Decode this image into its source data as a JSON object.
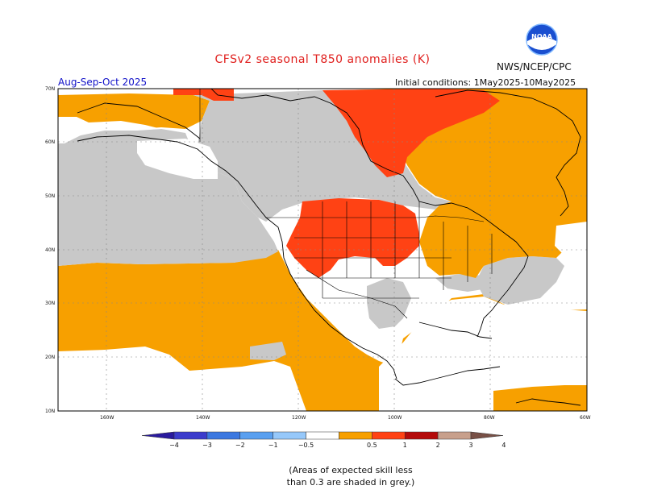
{
  "header": {
    "title": "CFSv2 seasonal T850 anomalies (K)",
    "agency": "NWS/NCEP/CPC",
    "logo_text": "NOAA",
    "season": "Aug-Sep-Oct 2025",
    "initial_conditions": "Initial conditions: 1May2025-10May2025"
  },
  "map": {
    "lat_labels": [
      "70N",
      "60N",
      "50N",
      "40N",
      "30N",
      "20N",
      "10N"
    ],
    "lon_labels": [
      "160W",
      "140W",
      "120W",
      "100W",
      "80W",
      "60W"
    ],
    "region_fills": {
      "above_0_5_to_1": "#f7a000",
      "above_1_to_2": "#ff4214",
      "low_skill": "#c8c8c8",
      "near_normal": "#ffffff"
    }
  },
  "colorbar": {
    "labels": [
      "−4",
      "−3",
      "−2",
      "−1",
      "−0.5",
      "0.5",
      "1",
      "2",
      "3",
      "4"
    ],
    "colors": [
      "#2a1a9e",
      "#3c3ccc",
      "#3c78e0",
      "#5aa0f0",
      "#96c8fa",
      "#ffffff",
      "#f7a000",
      "#ff4214",
      "#b40a0a",
      "#c8a08c",
      "#785046"
    ]
  },
  "footnote": {
    "line1": "(Areas of expected skill less",
    "line2": "than 0.3 are shaded in grey.)"
  }
}
